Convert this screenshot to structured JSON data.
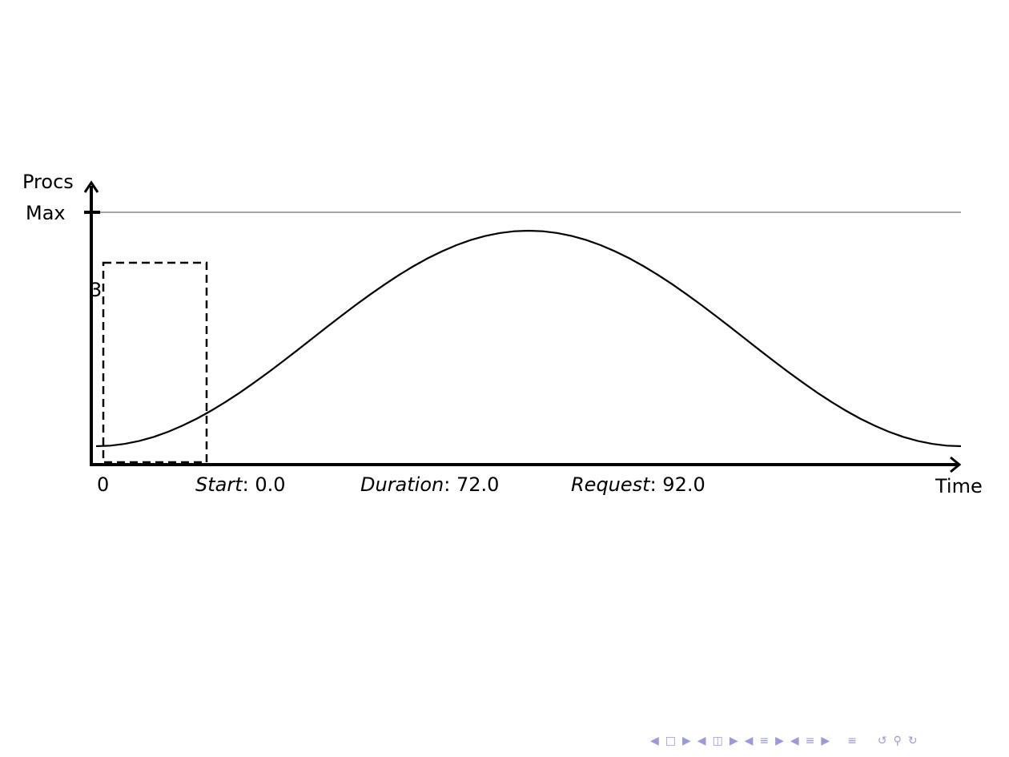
{
  "diagram": {
    "y_axis_label": "Procs",
    "y_max_label": "Max",
    "box_label": "3",
    "x_axis_label": "Time",
    "origin_label": "0",
    "start": {
      "label": "Start",
      "value": "0.0"
    },
    "duration": {
      "label": "Duration",
      "value": "72.0"
    },
    "request": {
      "label": "Request",
      "value": "92.0"
    },
    "curve": "sine-bump",
    "box_style": "dashed",
    "max_line_color": "#888888"
  },
  "nav": {
    "icons": [
      "arrow-left-icon",
      "frame-icon",
      "arrow-right-icon",
      "arrow-left-icon",
      "section-icon",
      "arrow-right-icon",
      "arrow-left-icon",
      "subsection-icon",
      "arrow-right-icon",
      "arrow-left-icon",
      "subsubsection-icon",
      "arrow-right-icon",
      "align-icon",
      "undo-icon",
      "search-icon",
      "redo-icon"
    ],
    "color": "#9a9ad8"
  }
}
